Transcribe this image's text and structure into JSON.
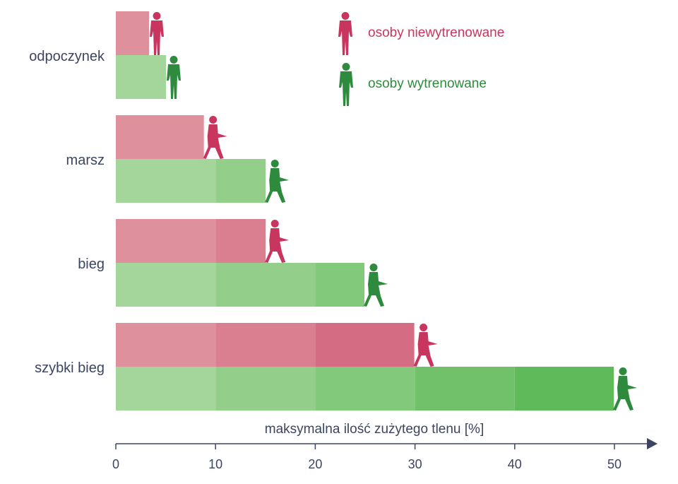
{
  "chart_data": {
    "type": "bar",
    "orientation": "horizontal",
    "categories": [
      "odpoczynek",
      "marsz",
      "bieg",
      "szybki bieg"
    ],
    "series": [
      {
        "name": "osoby niewytrenowane",
        "values": [
          3.4,
          8.9,
          15.1,
          30.0
        ],
        "color": "#c8365f"
      },
      {
        "name": "osoby wytrenowane",
        "values": [
          5.1,
          15.1,
          25.0,
          50.0
        ],
        "color": "#2e8b3e"
      }
    ],
    "xlabel": "maksymalna ilość zużytego tlenu [%]",
    "ylabel": "",
    "title": "",
    "xlim": [
      0,
      50
    ],
    "x_ticks": [
      "0",
      "10",
      "20",
      "30",
      "40",
      "50"
    ],
    "band_step": 10,
    "bar_shades": {
      "series_0": [
        "#de909c",
        "#da7f90",
        "#d46d84"
      ],
      "series_1": [
        "#a4d59a",
        "#93cf8b",
        "#83c97b",
        "#71c06a",
        "#5fba5a"
      ]
    },
    "legend_position": "top-right",
    "grid": false,
    "icons": [
      "person-untrained-icon",
      "person-trained-icon"
    ]
  }
}
